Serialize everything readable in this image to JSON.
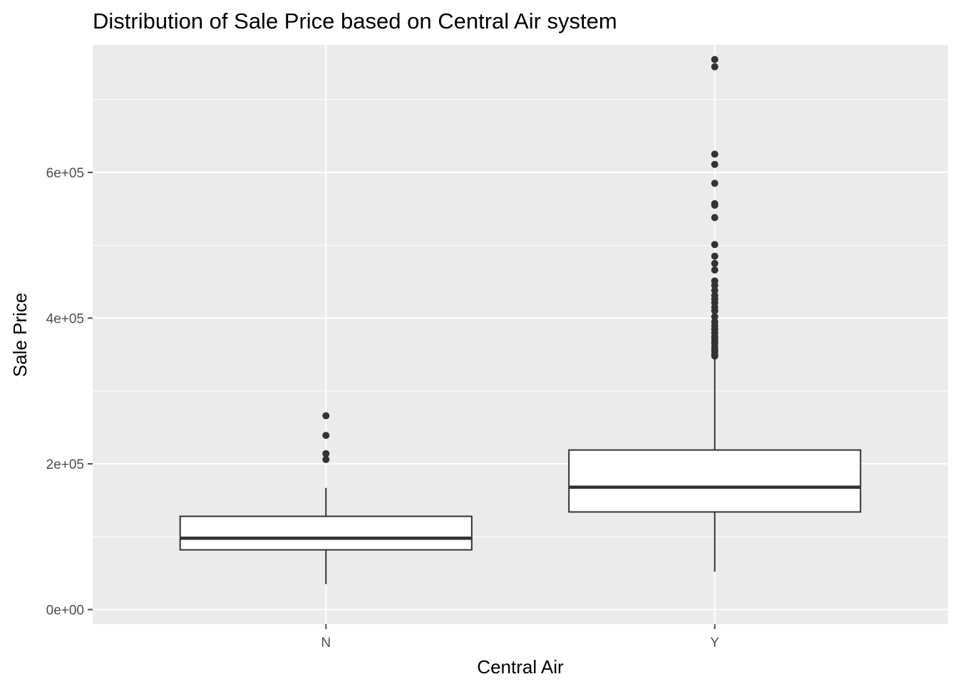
{
  "chart_data": {
    "type": "box",
    "title": "Distribution of Sale Price based on Central Air system",
    "xlabel": "Central Air",
    "ylabel": "Sale Price",
    "categories": [
      "N",
      "Y"
    ],
    "ylim": [
      -20000,
      775000
    ],
    "yticks": [
      {
        "value": 0,
        "label": "0e+00"
      },
      {
        "value": 200000,
        "label": "2e+05"
      },
      {
        "value": 400000,
        "label": "4e+05"
      },
      {
        "value": 600000,
        "label": "6e+05"
      }
    ],
    "grid": true,
    "legend": "none",
    "colors": {
      "panel": "#ebebeb",
      "grid": "#ffffff",
      "box_fill": "#ffffff",
      "box_line": "#333333",
      "point": "#333333",
      "tick": "#4d4d4d"
    },
    "boxes": [
      {
        "category": "N",
        "lower_whisker": 35000,
        "q1": 82000,
        "median": 98000,
        "q3": 128000,
        "upper_whisker": 167000,
        "outliers": [
          266000,
          239000,
          214000,
          206000
        ]
      },
      {
        "category": "Y",
        "lower_whisker": 52000,
        "q1": 134000,
        "median": 168000,
        "q3": 219000,
        "upper_whisker": 345000,
        "outliers": [
          755000,
          745000,
          625000,
          611000,
          585000,
          557000,
          555000,
          538000,
          501000,
          485000,
          475000,
          466000,
          451000,
          445000,
          438000,
          431000,
          426000,
          421000,
          415000,
          410000,
          402000,
          395000,
          390000,
          385000,
          380000,
          375000,
          372000,
          368000,
          365000,
          360000,
          357000,
          354000,
          350000,
          348000
        ]
      }
    ]
  }
}
